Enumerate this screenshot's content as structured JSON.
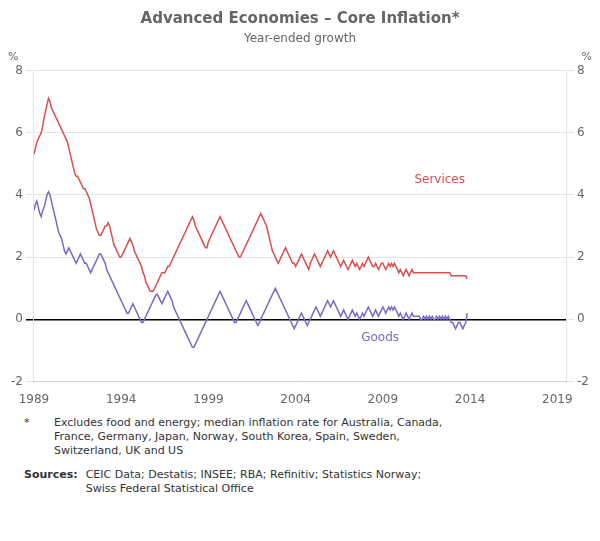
{
  "chart_data": {
    "type": "line",
    "title": "Advanced Economies – Core Inflation*",
    "subtitle": "Year-ended growth",
    "ylabel": "%",
    "y2label": "%",
    "xlim": [
      1989.0,
      2019.5
    ],
    "xticks": [
      1989,
      1994,
      1999,
      2004,
      2009,
      2014,
      2019
    ],
    "ylim": [
      -2,
      8
    ],
    "yticks": [
      -2,
      0,
      2,
      4,
      6,
      8
    ],
    "y2lim": [
      -2,
      8
    ],
    "y2ticks": [
      -2,
      0,
      2,
      4,
      6,
      8
    ],
    "grid": "y",
    "footnote_marker": "*",
    "footnote": "Excludes food and energy; median inflation rate for Australia, Canada,\nFrance, Germany, Japan, Norway, South Korea, Spain, Sweden,\nSwitzerland, UK and US",
    "sources_label": "Sources:",
    "sources": "CEIC Data; Destatis; INSEE; RBA; Refinitiv; Statistics Norway;\nSwiss Federal Statistical Office",
    "x": [
      1989,
      1989.0833,
      1989.1667,
      1989.25,
      1989.3333,
      1989.4167,
      1989.5,
      1989.5833,
      1989.6667,
      1989.75,
      1989.8333,
      1989.9167,
      1990,
      1990.0833,
      1990.1667,
      1990.25,
      1990.3333,
      1990.4167,
      1990.5,
      1990.5833,
      1990.6667,
      1990.75,
      1990.8333,
      1990.9167,
      1991,
      1991.0833,
      1991.1667,
      1991.25,
      1991.3333,
      1991.4167,
      1991.5,
      1991.5833,
      1991.6667,
      1991.75,
      1991.8333,
      1991.9167,
      1992,
      1992.0833,
      1992.1667,
      1992.25,
      1992.3333,
      1992.4167,
      1992.5,
      1992.5833,
      1992.6667,
      1992.75,
      1992.8333,
      1992.9167,
      1993,
      1993.0833,
      1993.1667,
      1993.25,
      1993.3333,
      1993.4167,
      1993.5,
      1993.5833,
      1993.6667,
      1993.75,
      1993.8333,
      1993.9167,
      1994,
      1994.0833,
      1994.1667,
      1994.25,
      1994.3333,
      1994.4167,
      1994.5,
      1994.5833,
      1994.6667,
      1994.75,
      1994.8333,
      1994.9167,
      1995,
      1995.0833,
      1995.1667,
      1995.25,
      1995.3333,
      1995.4167,
      1995.5,
      1995.5833,
      1995.6667,
      1995.75,
      1995.8333,
      1995.9167,
      1996,
      1996.0833,
      1996.1667,
      1996.25,
      1996.3333,
      1996.4167,
      1996.5,
      1996.5833,
      1996.6667,
      1996.75,
      1996.8333,
      1996.9167,
      1997,
      1997.0833,
      1997.1667,
      1997.25,
      1997.3333,
      1997.4167,
      1997.5,
      1997.5833,
      1997.6667,
      1997.75,
      1997.8333,
      1997.9167,
      1998,
      1998.0833,
      1998.1667,
      1998.25,
      1998.3333,
      1998.4167,
      1998.5,
      1998.5833,
      1998.6667,
      1998.75,
      1998.8333,
      1998.9167,
      1999,
      1999.0833,
      1999.1667,
      1999.25,
      1999.3333,
      1999.4167,
      1999.5,
      1999.5833,
      1999.6667,
      1999.75,
      1999.8333,
      1999.9167,
      2000,
      2000.0833,
      2000.1667,
      2000.25,
      2000.3333,
      2000.4167,
      2000.5,
      2000.5833,
      2000.6667,
      2000.75,
      2000.8333,
      2000.9167,
      2001,
      2001.0833,
      2001.1667,
      2001.25,
      2001.3333,
      2001.4167,
      2001.5,
      2001.5833,
      2001.6667,
      2001.75,
      2001.8333,
      2001.9167,
      2002,
      2002.0833,
      2002.1667,
      2002.25,
      2002.3333,
      2002.4167,
      2002.5,
      2002.5833,
      2002.6667,
      2002.75,
      2002.8333,
      2002.9167,
      2003,
      2003.0833,
      2003.1667,
      2003.25,
      2003.3333,
      2003.4167,
      2003.5,
      2003.5833,
      2003.6667,
      2003.75,
      2003.8333,
      2003.9167,
      2004,
      2004.0833,
      2004.1667,
      2004.25,
      2004.3333,
      2004.4167,
      2004.5,
      2004.5833,
      2004.6667,
      2004.75,
      2004.8333,
      2004.9167,
      2005,
      2005.0833,
      2005.1667,
      2005.25,
      2005.3333,
      2005.4167,
      2005.5,
      2005.5833,
      2005.6667,
      2005.75,
      2005.8333,
      2005.9167,
      2006,
      2006.0833,
      2006.1667,
      2006.25,
      2006.3333,
      2006.4167,
      2006.5,
      2006.5833,
      2006.6667,
      2006.75,
      2006.8333,
      2006.9167,
      2007,
      2007.0833,
      2007.1667,
      2007.25,
      2007.3333,
      2007.4167,
      2007.5,
      2007.5833,
      2007.6667,
      2007.75,
      2007.8333,
      2007.9167,
      2008,
      2008.0833,
      2008.1667,
      2008.25,
      2008.3333,
      2008.4167,
      2008.5,
      2008.5833,
      2008.6667,
      2008.75,
      2008.8333,
      2008.9167,
      2009,
      2009.0833,
      2009.1667,
      2009.25,
      2009.3333,
      2009.4167,
      2009.5,
      2009.5833,
      2009.6667,
      2009.75,
      2009.8333,
      2009.9167,
      2010,
      2010.0833,
      2010.1667,
      2010.25,
      2010.3333,
      2010.4167,
      2010.5,
      2010.5833,
      2010.6667,
      2010.75,
      2010.8333,
      2010.9167,
      2011,
      2011.0833,
      2011.1667,
      2011.25,
      2011.3333,
      2011.4167,
      2011.5,
      2011.5833,
      2011.6667,
      2011.75,
      2011.8333,
      2011.9167,
      2012,
      2012.0833,
      2012.1667,
      2012.25,
      2012.3333,
      2012.4167,
      2012.5,
      2012.5833,
      2012.6667,
      2012.75,
      2012.8333,
      2012.9167,
      2013,
      2013.0833,
      2013.1667,
      2013.25,
      2013.3333,
      2013.4167,
      2013.5,
      2013.5833,
      2013.6667,
      2013.75,
      2013.8333
    ],
    "series": [
      {
        "name": "Services",
        "color": "#d94f4f",
        "values": [
          5.3,
          5.5,
          5.7,
          5.8,
          5.9,
          6.0,
          6.2,
          6.5,
          6.7,
          6.9,
          7.1,
          7.0,
          6.8,
          6.7,
          6.6,
          6.5,
          6.4,
          6.3,
          6.2,
          6.1,
          6.0,
          5.9,
          5.8,
          5.7,
          5.5,
          5.3,
          5.1,
          4.9,
          4.7,
          4.6,
          4.6,
          4.5,
          4.4,
          4.3,
          4.2,
          4.2,
          4.1,
          4.0,
          3.9,
          3.7,
          3.5,
          3.3,
          3.1,
          2.9,
          2.8,
          2.7,
          2.7,
          2.8,
          2.9,
          3.0,
          3.0,
          3.1,
          3.0,
          2.8,
          2.6,
          2.4,
          2.3,
          2.2,
          2.1,
          2.0,
          2.0,
          2.1,
          2.2,
          2.3,
          2.4,
          2.5,
          2.6,
          2.5,
          2.4,
          2.2,
          2.1,
          2.0,
          1.9,
          1.8,
          1.7,
          1.5,
          1.4,
          1.2,
          1.1,
          1.0,
          0.9,
          0.9,
          0.9,
          1.0,
          1.1,
          1.2,
          1.3,
          1.4,
          1.5,
          1.5,
          1.5,
          1.6,
          1.7,
          1.7,
          1.8,
          1.9,
          2.0,
          2.1,
          2.2,
          2.3,
          2.4,
          2.5,
          2.6,
          2.7,
          2.8,
          2.9,
          3.0,
          3.1,
          3.2,
          3.3,
          3.2,
          3.0,
          2.9,
          2.8,
          2.7,
          2.6,
          2.5,
          2.4,
          2.3,
          2.3,
          2.5,
          2.6,
          2.7,
          2.8,
          2.9,
          3.0,
          3.1,
          3.2,
          3.3,
          3.2,
          3.1,
          3.0,
          2.9,
          2.8,
          2.7,
          2.6,
          2.5,
          2.4,
          2.3,
          2.2,
          2.1,
          2.0,
          2.0,
          2.1,
          2.2,
          2.3,
          2.4,
          2.5,
          2.6,
          2.7,
          2.8,
          2.9,
          3.0,
          3.1,
          3.2,
          3.3,
          3.4,
          3.3,
          3.2,
          3.1,
          3.0,
          2.8,
          2.6,
          2.4,
          2.2,
          2.1,
          2.0,
          1.9,
          1.8,
          1.9,
          2.0,
          2.1,
          2.2,
          2.3,
          2.2,
          2.1,
          2.0,
          1.9,
          1.8,
          1.8,
          1.7,
          1.8,
          1.9,
          2.0,
          2.1,
          2.0,
          1.9,
          1.8,
          1.7,
          1.6,
          1.8,
          1.9,
          2.0,
          2.1,
          2.0,
          1.9,
          1.8,
          1.7,
          1.8,
          1.9,
          2.0,
          2.1,
          2.2,
          2.1,
          2.0,
          2.1,
          2.2,
          2.1,
          2.0,
          1.9,
          1.8,
          1.7,
          1.8,
          1.9,
          1.8,
          1.7,
          1.6,
          1.7,
          1.8,
          1.9,
          1.8,
          1.7,
          1.8,
          1.7,
          1.6,
          1.7,
          1.8,
          1.7,
          1.8,
          1.9,
          2.0,
          1.9,
          1.8,
          1.7,
          1.7,
          1.8,
          1.7,
          1.6,
          1.7,
          1.8,
          1.8,
          1.7,
          1.6,
          1.7,
          1.8,
          1.7,
          1.8,
          1.7,
          1.8,
          1.7,
          1.6,
          1.5,
          1.6,
          1.5,
          1.4,
          1.5,
          1.6,
          1.5,
          1.4,
          1.5,
          1.6,
          1.5,
          1.5,
          1.5,
          1.5,
          1.5,
          1.5,
          1.5,
          1.5,
          1.5,
          1.5,
          1.5,
          1.5,
          1.5,
          1.5,
          1.5,
          1.5,
          1.5,
          1.5,
          1.5,
          1.5,
          1.5,
          1.5,
          1.5,
          1.5,
          1.5,
          1.5,
          1.4,
          1.4,
          1.4,
          1.4,
          1.4,
          1.4,
          1.4,
          1.4,
          1.4,
          1.4,
          1.4,
          1.3
        ]
      },
      {
        "name": "Goods",
        "color": "#7b68c8",
        "values": [
          3.5,
          3.7,
          3.8,
          3.6,
          3.4,
          3.3,
          3.5,
          3.6,
          3.8,
          4.0,
          4.1,
          4.0,
          3.8,
          3.6,
          3.4,
          3.2,
          3.0,
          2.8,
          2.7,
          2.6,
          2.4,
          2.2,
          2.1,
          2.2,
          2.3,
          2.2,
          2.1,
          2.0,
          1.9,
          1.8,
          1.9,
          2.0,
          2.1,
          2.0,
          1.9,
          1.8,
          1.8,
          1.7,
          1.6,
          1.5,
          1.6,
          1.7,
          1.8,
          1.9,
          2.0,
          2.1,
          2.1,
          2.0,
          1.9,
          1.8,
          1.6,
          1.5,
          1.4,
          1.3,
          1.2,
          1.1,
          1.0,
          0.9,
          0.8,
          0.7,
          0.6,
          0.5,
          0.4,
          0.3,
          0.2,
          0.2,
          0.3,
          0.4,
          0.5,
          0.4,
          0.3,
          0.2,
          0.1,
          0.0,
          -0.1,
          -0.1,
          0.0,
          0.1,
          0.2,
          0.3,
          0.4,
          0.5,
          0.6,
          0.7,
          0.8,
          0.8,
          0.7,
          0.6,
          0.5,
          0.6,
          0.7,
          0.8,
          0.9,
          0.8,
          0.7,
          0.6,
          0.4,
          0.3,
          0.2,
          0.1,
          0.0,
          -0.1,
          -0.2,
          -0.3,
          -0.4,
          -0.5,
          -0.6,
          -0.7,
          -0.8,
          -0.9,
          -0.9,
          -0.8,
          -0.7,
          -0.6,
          -0.5,
          -0.4,
          -0.3,
          -0.2,
          -0.1,
          0.0,
          0.1,
          0.2,
          0.3,
          0.4,
          0.5,
          0.6,
          0.7,
          0.8,
          0.9,
          0.8,
          0.7,
          0.6,
          0.5,
          0.4,
          0.3,
          0.2,
          0.1,
          0.0,
          -0.1,
          -0.1,
          0.0,
          0.1,
          0.2,
          0.3,
          0.4,
          0.5,
          0.6,
          0.5,
          0.4,
          0.3,
          0.2,
          0.1,
          0.0,
          -0.1,
          -0.2,
          -0.1,
          0.0,
          0.1,
          0.2,
          0.3,
          0.4,
          0.5,
          0.6,
          0.7,
          0.8,
          0.9,
          1.0,
          0.9,
          0.8,
          0.7,
          0.6,
          0.5,
          0.4,
          0.3,
          0.2,
          0.1,
          0.0,
          -0.1,
          -0.2,
          -0.3,
          -0.2,
          -0.1,
          0.0,
          0.1,
          0.2,
          0.1,
          0.0,
          -0.1,
          -0.2,
          -0.1,
          0.0,
          0.1,
          0.2,
          0.3,
          0.4,
          0.3,
          0.2,
          0.1,
          0.2,
          0.3,
          0.4,
          0.5,
          0.6,
          0.5,
          0.4,
          0.5,
          0.6,
          0.5,
          0.4,
          0.3,
          0.2,
          0.1,
          0.2,
          0.3,
          0.2,
          0.1,
          0.0,
          0.1,
          0.2,
          0.3,
          0.2,
          0.1,
          0.2,
          0.1,
          0.0,
          0.1,
          0.2,
          0.1,
          0.2,
          0.3,
          0.4,
          0.3,
          0.2,
          0.1,
          0.2,
          0.3,
          0.2,
          0.1,
          0.2,
          0.3,
          0.4,
          0.3,
          0.2,
          0.3,
          0.4,
          0.3,
          0.4,
          0.3,
          0.4,
          0.3,
          0.2,
          0.1,
          0.2,
          0.1,
          0.0,
          0.1,
          0.2,
          0.1,
          0.0,
          0.1,
          0.2,
          0.1,
          0.1,
          0.1,
          0.1,
          0.1,
          0.0,
          0.0,
          0.1,
          0.0,
          0.1,
          0.0,
          0.1,
          0.0,
          0.1,
          0.0,
          0.0,
          0.1,
          0.0,
          0.1,
          0.0,
          0.1,
          0.0,
          0.1,
          0.0,
          0.1,
          0.0,
          -0.1,
          -0.1,
          -0.2,
          -0.3,
          -0.2,
          -0.1,
          -0.1,
          -0.2,
          -0.3,
          -0.2,
          -0.1,
          0.2
        ]
      }
    ]
  }
}
